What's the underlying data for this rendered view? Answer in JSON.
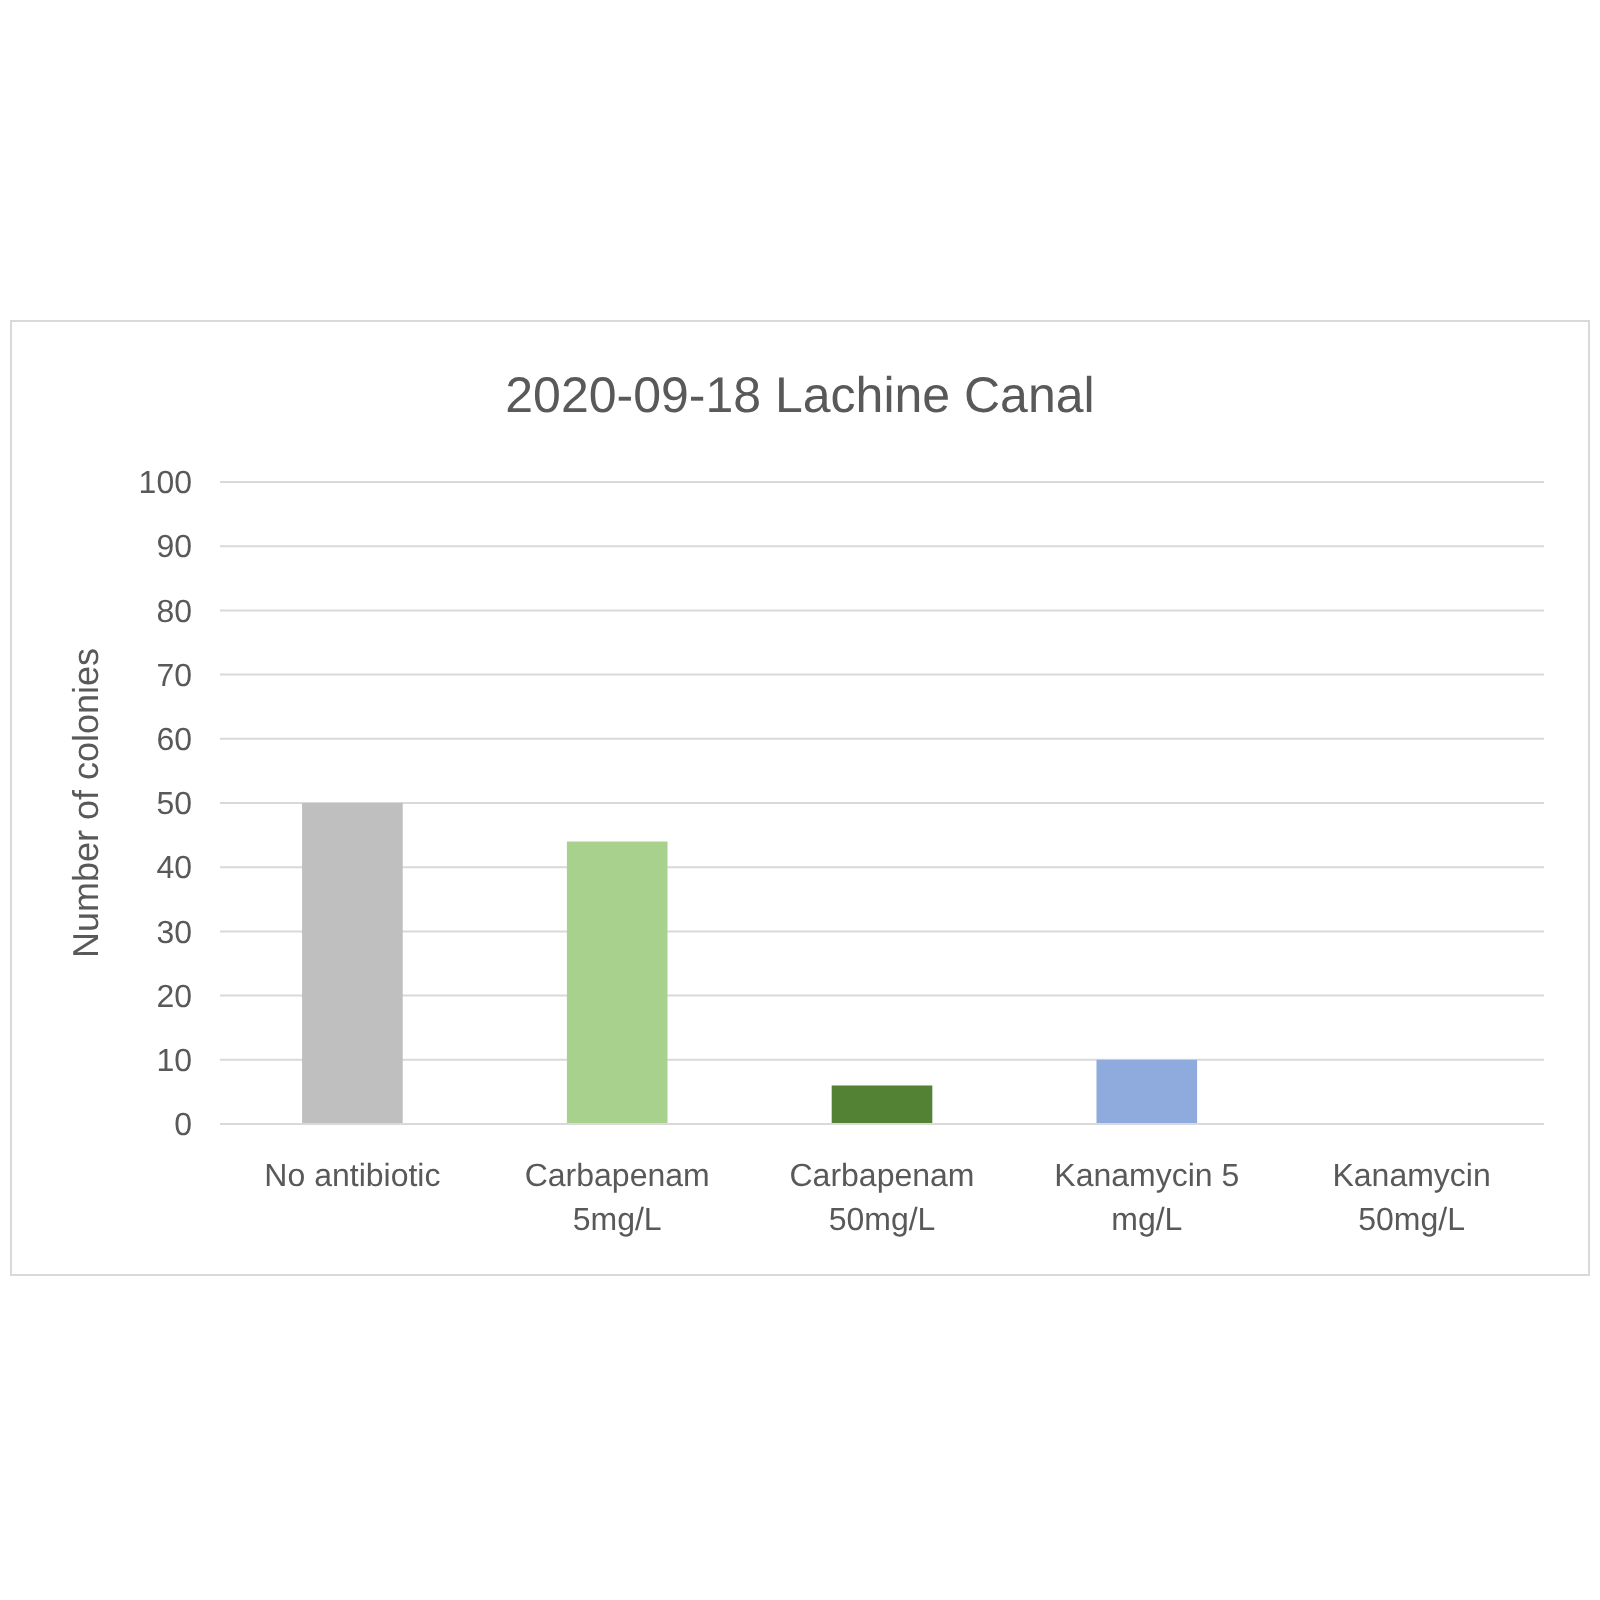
{
  "chart_data": {
    "type": "bar",
    "title": "2020-09-18 Lachine Canal",
    "ylabel": "Number of colonies",
    "categories": [
      "No antibiotic",
      "Carbapenam 5mg/L",
      "Carbapenam 50mg/L",
      "Kanamycin 5 mg/L",
      "Kanamycin 50mg/L"
    ],
    "values": [
      50,
      44,
      6,
      10,
      0
    ],
    "colors": [
      "#bfbfbf",
      "#a9d18e",
      "#548235",
      "#8faadc",
      "#f4b183"
    ],
    "ylim": [
      0,
      100
    ],
    "yticks": [
      0,
      10,
      20,
      30,
      40,
      50,
      60,
      70,
      80,
      90,
      100
    ],
    "grid": "y"
  }
}
